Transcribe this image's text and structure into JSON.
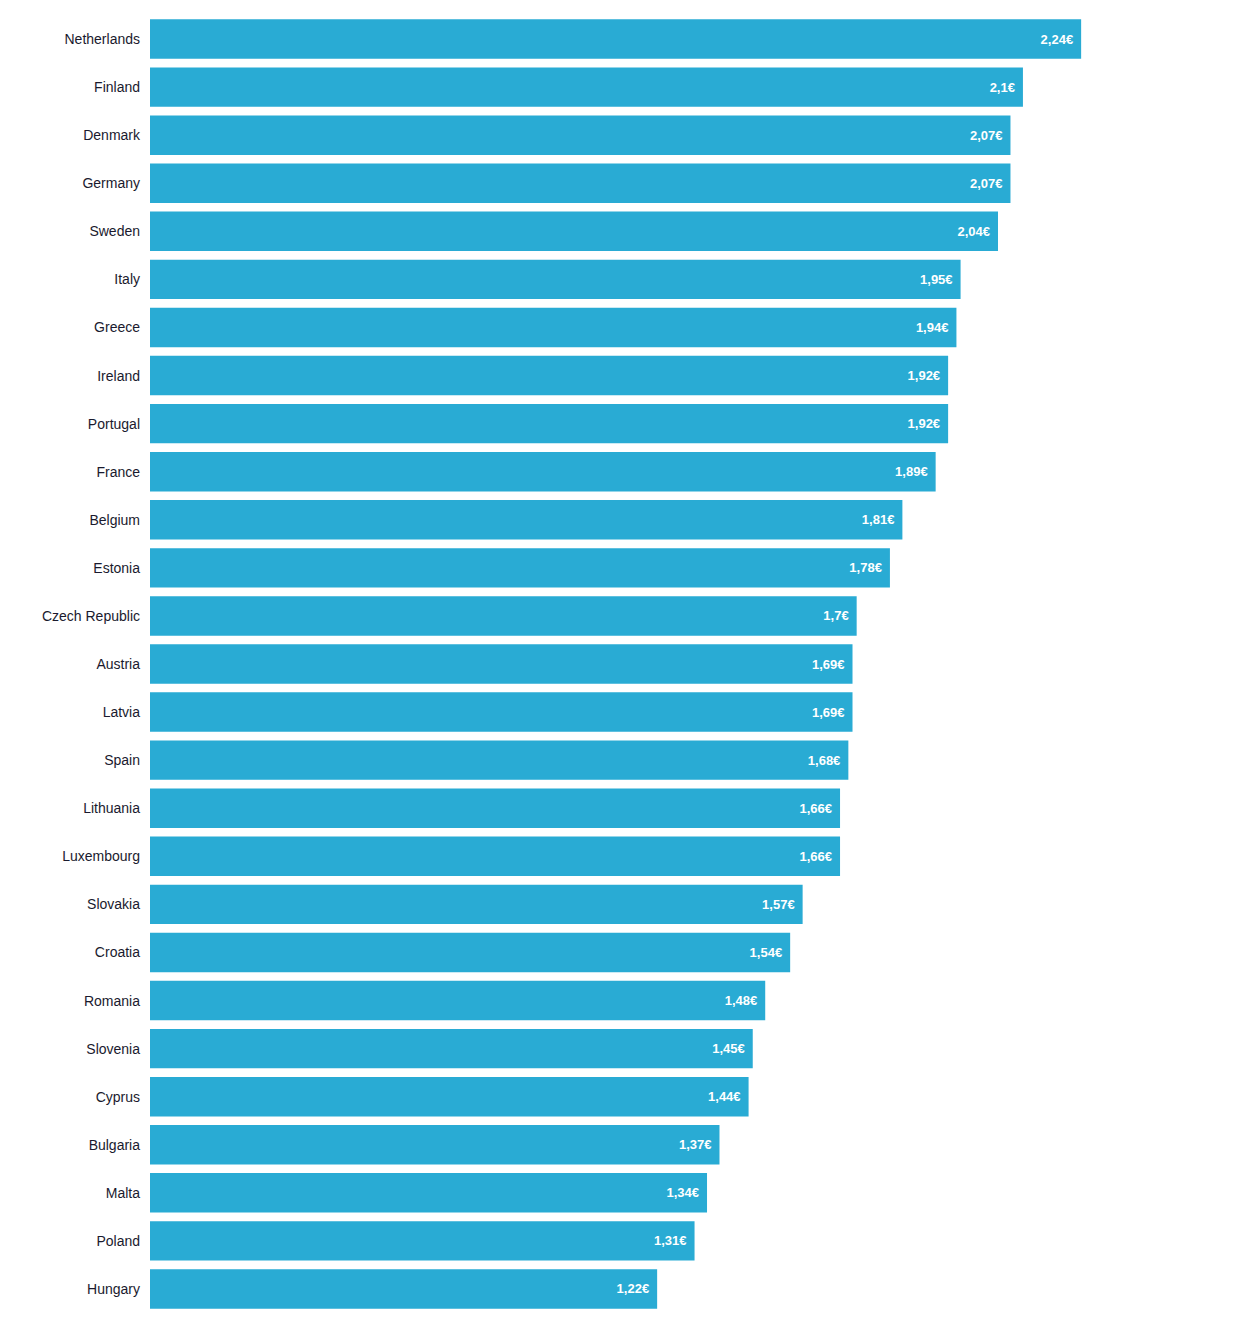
{
  "chart_data": {
    "type": "bar",
    "orientation": "horizontal",
    "categories": [
      "Netherlands",
      "Finland",
      "Denmark",
      "Germany",
      "Sweden",
      "Italy",
      "Greece",
      "Ireland",
      "Portugal",
      "France",
      "Belgium",
      "Estonia",
      "Czech Republic",
      "Austria",
      "Latvia",
      "Spain",
      "Lithuania",
      "Luxembourg",
      "Slovakia",
      "Croatia",
      "Romania",
      "Slovenia",
      "Cyprus",
      "Bulgaria",
      "Malta",
      "Poland",
      "Hungary"
    ],
    "values": [
      2.24,
      2.1,
      2.07,
      2.07,
      2.04,
      1.95,
      1.94,
      1.92,
      1.92,
      1.89,
      1.81,
      1.78,
      1.7,
      1.69,
      1.69,
      1.68,
      1.66,
      1.66,
      1.57,
      1.54,
      1.48,
      1.45,
      1.44,
      1.37,
      1.34,
      1.31,
      1.22
    ],
    "value_labels": [
      "2,24€",
      "2,1€",
      "2,07€",
      "2,07€",
      "2,04€",
      "1,95€",
      "1,94€",
      "1,92€",
      "1,92€",
      "1,89€",
      "1,81€",
      "1,78€",
      "1,7€",
      "1,69€",
      "1,69€",
      "1,68€",
      "1,66€",
      "1,66€",
      "1,57€",
      "1,54€",
      "1,48€",
      "1,45€",
      "1,44€",
      "1,37€",
      "1,34€",
      "1,31€",
      "1,22€"
    ],
    "color": "#29ABD4",
    "xlim": [
      0,
      2.55
    ],
    "data_labels": true,
    "tick_labels": "y",
    "grid": false
  }
}
